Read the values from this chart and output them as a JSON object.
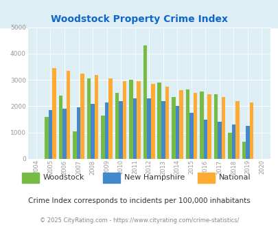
{
  "title": "Woodstock Property Crime Index",
  "years": [
    2004,
    2005,
    2006,
    2007,
    2008,
    2009,
    2010,
    2011,
    2012,
    2013,
    2014,
    2015,
    2016,
    2017,
    2018,
    2019,
    2020
  ],
  "woodstock": [
    null,
    1600,
    2400,
    1050,
    3050,
    1650,
    2500,
    3000,
    4300,
    2900,
    2350,
    2650,
    2550,
    2450,
    1000,
    650,
    null
  ],
  "new_hampshire": [
    null,
    1850,
    1900,
    1950,
    2100,
    2150,
    2200,
    2300,
    2300,
    2200,
    2000,
    1750,
    1500,
    1400,
    1300,
    1250,
    null
  ],
  "national": [
    null,
    3450,
    3350,
    3250,
    3200,
    3050,
    2950,
    2950,
    2850,
    2750,
    2600,
    2500,
    2450,
    2350,
    2200,
    2150,
    null
  ],
  "woodstock_color": "#77bb44",
  "nh_color": "#4488cc",
  "national_color": "#ffaa33",
  "plot_bg": "#ddeef5",
  "fig_bg_top": "#ddeef5",
  "fig_bg_bottom": "#ffffff",
  "ylim": [
    0,
    5000
  ],
  "yticks": [
    0,
    1000,
    2000,
    3000,
    4000,
    5000
  ],
  "subtitle": "Crime Index corresponds to incidents per 100,000 inhabitants",
  "footer": "© 2025 CityRating.com - https://www.cityrating.com/crime-statistics/",
  "title_color": "#1166cc",
  "subtitle_color": "#333333",
  "footer_color": "#888888",
  "tick_color": "#999999"
}
